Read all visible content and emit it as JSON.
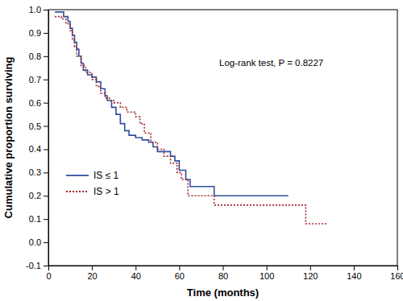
{
  "chart_data": {
    "type": "line",
    "x_label": "Time (months)",
    "y_label": "Cumulative proportion surviving",
    "annotation": "Log-rank test, P = 0.8227",
    "xlim": [
      0,
      160
    ],
    "xticks": [
      0,
      20,
      40,
      60,
      80,
      100,
      120,
      140,
      160
    ],
    "ylim": [
      -0.1,
      1.0
    ],
    "yticks": [
      -0.1,
      {
        "value": 0,
        "label": "0.0"
      },
      0.1,
      0.2,
      0.3,
      0.4,
      0.5,
      0.6,
      0.7,
      0.8,
      0.9,
      {
        "value": 1.0,
        "label": "1.0"
      }
    ],
    "legend": "lower left",
    "series": [
      {
        "name": "IS ≤ 1",
        "color": "#2f4f9c",
        "line_style": "solid",
        "x": [
          3,
          7,
          9,
          10,
          11,
          12,
          13,
          14,
          15,
          16,
          18,
          20,
          22,
          24,
          26,
          27,
          29,
          31,
          33,
          35,
          37,
          40,
          43,
          46,
          48,
          50,
          56,
          58,
          60,
          63,
          65,
          76,
          110
        ],
        "values": [
          0.99,
          0.97,
          0.95,
          0.92,
          0.89,
          0.86,
          0.83,
          0.8,
          0.77,
          0.74,
          0.72,
          0.71,
          0.69,
          0.66,
          0.63,
          0.61,
          0.58,
          0.55,
          0.51,
          0.48,
          0.46,
          0.45,
          0.44,
          0.43,
          0.41,
          0.39,
          0.37,
          0.35,
          0.31,
          0.27,
          0.24,
          0.2,
          0.2
        ]
      },
      {
        "name": "IS > 1",
        "color": "#a3252b",
        "line_style": "dotted",
        "x": [
          3,
          6,
          8,
          10,
          11,
          12,
          13,
          15,
          17,
          20,
          22,
          24,
          26,
          28,
          30,
          33,
          36,
          40,
          42,
          44,
          47,
          50,
          53,
          56,
          59,
          61,
          64,
          76,
          117,
          118,
          128
        ],
        "values": [
          0.97,
          0.96,
          0.94,
          0.91,
          0.87,
          0.84,
          0.8,
          0.76,
          0.73,
          0.7,
          0.67,
          0.64,
          0.62,
          0.61,
          0.6,
          0.58,
          0.56,
          0.54,
          0.51,
          0.47,
          0.43,
          0.4,
          0.37,
          0.34,
          0.3,
          0.27,
          0.2,
          0.16,
          0.16,
          0.08,
          0.08
        ]
      }
    ]
  }
}
